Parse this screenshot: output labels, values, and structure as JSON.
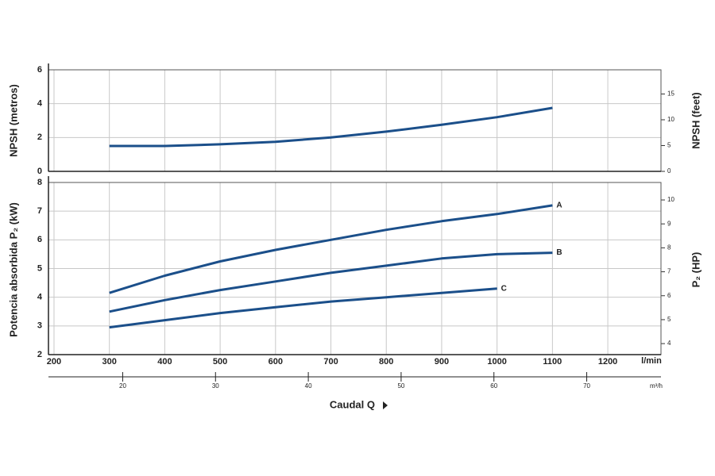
{
  "chart_data": [
    {
      "type": "line",
      "ylabel": "NPSH (metros)",
      "y2label": "NPSH (feet)",
      "x": [
        300,
        400,
        500,
        600,
        700,
        800,
        900,
        1000,
        1100
      ],
      "xlim": [
        190,
        1296
      ],
      "ylim": [
        0,
        6
      ],
      "yticks": [
        0,
        2,
        4,
        6
      ],
      "y2lim": [
        0,
        19.685
      ],
      "y2ticks": [
        0,
        5,
        10,
        15
      ],
      "grid": true,
      "series": [
        {
          "color": "#1b4f8a",
          "values": [
            1.5,
            1.5,
            1.6,
            1.75,
            2.0,
            2.35,
            2.75,
            3.2,
            3.75
          ]
        }
      ]
    },
    {
      "type": "line",
      "ylabel": "Potencia absorbida P₂ (kW)",
      "y2label": "P₂ (HP)",
      "xlabel": "Caudal Q",
      "xunit": "l/min",
      "x2unit": "m³/h",
      "x": [
        300,
        400,
        500,
        600,
        700,
        800,
        900,
        1000,
        1100
      ],
      "xlim": [
        190,
        1296
      ],
      "xticks": [
        200,
        300,
        400,
        500,
        600,
        700,
        800,
        900,
        1000,
        1100,
        1200
      ],
      "x2lim": [
        12,
        78
      ],
      "x2ticks": [
        20,
        30,
        40,
        50,
        60,
        70
      ],
      "ylim": [
        2,
        8
      ],
      "yticks": [
        2,
        3,
        4,
        5,
        6,
        7,
        8
      ],
      "y2lim": [
        3.54,
        10.73
      ],
      "y2ticks": [
        4,
        5,
        6,
        7,
        8,
        9,
        10
      ],
      "grid": true,
      "series": [
        {
          "name": "A",
          "color": "#1b4f8a",
          "values": [
            4.15,
            4.75,
            5.25,
            5.65,
            6.0,
            6.35,
            6.65,
            6.9,
            7.2
          ]
        },
        {
          "name": "B",
          "color": "#1b4f8a",
          "values": [
            3.5,
            3.9,
            4.25,
            4.55,
            4.85,
            5.1,
            5.35,
            5.5,
            5.55
          ]
        },
        {
          "name": "C",
          "color": "#1b4f8a",
          "values": [
            2.95,
            3.2,
            3.45,
            3.65,
            3.85,
            4.0,
            4.15,
            4.3,
            null
          ]
        }
      ]
    }
  ]
}
